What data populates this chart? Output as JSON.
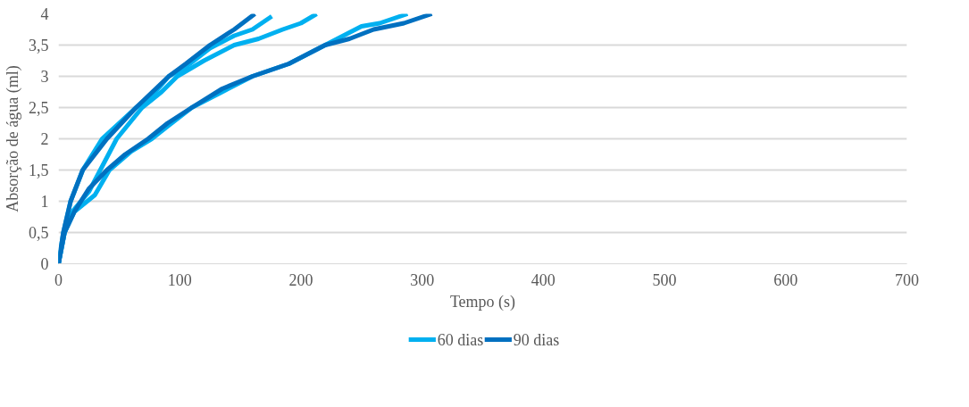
{
  "chart_data": {
    "type": "line",
    "xlabel": "Tempo (s)",
    "ylabel": "Absorção de água (ml)",
    "xlim": [
      0,
      700
    ],
    "ylim": [
      0,
      4
    ],
    "xticks": [
      0,
      100,
      200,
      300,
      400,
      500,
      600,
      700
    ],
    "yticks": [
      {
        "value": 0,
        "label": "0"
      },
      {
        "value": 0.5,
        "label": "0,5"
      },
      {
        "value": 1,
        "label": "1"
      },
      {
        "value": 1.5,
        "label": "1,5"
      },
      {
        "value": 2,
        "label": "2"
      },
      {
        "value": 2.5,
        "label": "2,5"
      },
      {
        "value": 3,
        "label": "3"
      },
      {
        "value": 3.5,
        "label": "3,5"
      },
      {
        "value": 4,
        "label": "4"
      }
    ],
    "grid": "y",
    "legend": "bottom",
    "marker": "none",
    "line_style": "solid",
    "series": [
      {
        "name": "60 dias",
        "color": "#00b0f0",
        "x": [
          0,
          4,
          10,
          20,
          36,
          50,
          64,
          80,
          91,
          105,
          125,
          145,
          160,
          176
        ],
        "values": [
          0,
          0.5,
          1,
          1.5,
          2,
          2.25,
          2.5,
          2.75,
          3,
          3.15,
          3.45,
          3.65,
          3.75,
          3.96
        ]
      },
      {
        "color": "#00b0f0",
        "x": [
          0,
          5,
          12,
          25,
          48,
          69,
          85,
          98,
          120,
          145,
          165,
          185,
          200,
          213
        ],
        "values": [
          0,
          0.5,
          0.85,
          1.15,
          2,
          2.5,
          2.75,
          3,
          3.25,
          3.5,
          3.6,
          3.75,
          3.85,
          4
        ]
      },
      {
        "color": "#00b0f0",
        "x": [
          0,
          5,
          13,
          30,
          42,
          60,
          77,
          90,
          110,
          135,
          160,
          190,
          220,
          250,
          265,
          288
        ],
        "values": [
          0,
          0.5,
          0.83,
          1.1,
          1.5,
          1.8,
          2,
          2.2,
          2.5,
          2.75,
          3,
          3.2,
          3.5,
          3.8,
          3.85,
          4
        ]
      },
      {
        "name": "90 dias",
        "color": "#0070c0",
        "x": [
          0,
          4,
          10,
          20,
          40,
          64,
          91,
          105,
          125,
          145,
          162
        ],
        "values": [
          0,
          0.5,
          1,
          1.5,
          2,
          2.5,
          3,
          3.2,
          3.5,
          3.75,
          4
        ]
      },
      {
        "color": "#0070c0",
        "x": [
          0,
          5,
          13,
          25,
          40,
          55,
          74,
          90,
          110,
          135,
          160,
          190,
          220,
          240,
          260,
          285,
          308
        ],
        "values": [
          0,
          0.5,
          0.83,
          1.2,
          1.5,
          1.75,
          2,
          2.25,
          2.5,
          2.8,
          3,
          3.2,
          3.5,
          3.6,
          3.75,
          3.85,
          4
        ]
      }
    ]
  }
}
